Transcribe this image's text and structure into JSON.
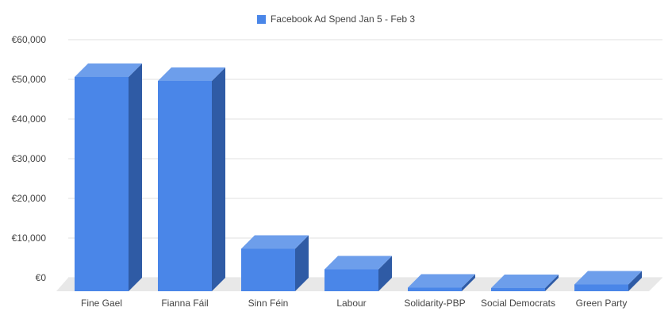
{
  "chart_data": {
    "type": "bar",
    "title": "",
    "xlabel": "",
    "ylabel": "",
    "legend": {
      "position": "top",
      "label": "Facebook Ad Spend Jan 5 - Feb 3"
    },
    "categories": [
      "Fine Gael",
      "Fianna Fáil",
      "Sinn Féin",
      "Labour",
      "Solidarity-PBP",
      "Social Democrats",
      "Green Party"
    ],
    "series": [
      {
        "name": "Facebook Ad Spend Jan 5 - Feb 3",
        "values": [
          54000,
          53000,
          10700,
          5500,
          900,
          800,
          1700
        ]
      }
    ],
    "ylim": [
      0,
      60000
    ],
    "yticks": [
      0,
      10000,
      20000,
      30000,
      40000,
      50000,
      60000
    ],
    "ytick_labels": [
      "€0",
      "€10,000",
      "€20,000",
      "€30,000",
      "€40,000",
      "€50,000",
      "€60,000"
    ],
    "grid": true,
    "style": "3d",
    "colors": {
      "bar_front": "#4a86e8",
      "bar_top": "#6d9eeb",
      "bar_side": "#2f5ba5",
      "floor": "#e8e8e8",
      "grid": "#e0e0e0",
      "axis_text": "#444444"
    }
  }
}
